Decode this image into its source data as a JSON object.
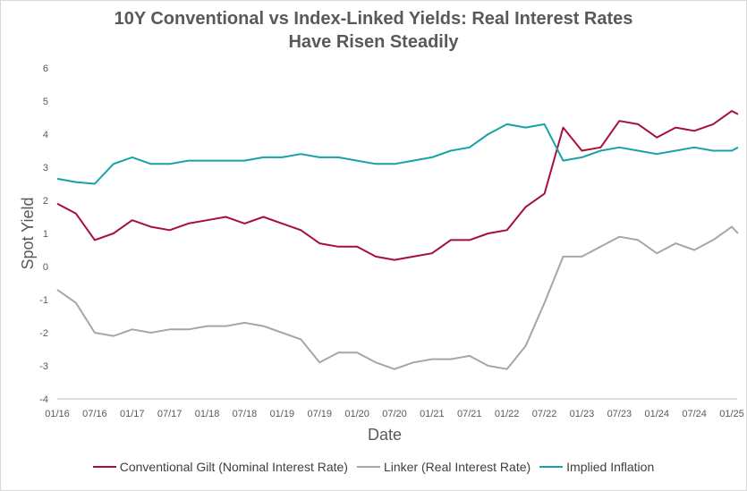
{
  "chart_data": {
    "type": "line",
    "title_line1": "10Y Conventional vs Index-Linked Yields: Real Interest Rates",
    "title_line2": "Have Risen Steadily",
    "xlabel": "Date",
    "ylabel": "Spot Yield",
    "ylim": [
      -4,
      6
    ],
    "yticks": [
      "6",
      "5",
      "4",
      "3",
      "2",
      "1",
      "0",
      "-1",
      "-2",
      "-3",
      "-4"
    ],
    "xticks": [
      "01/16",
      "07/16",
      "01/17",
      "07/17",
      "01/18",
      "07/18",
      "01/19",
      "07/19",
      "01/20",
      "07/20",
      "01/21",
      "07/21",
      "01/22",
      "07/22",
      "01/23",
      "07/23",
      "01/24",
      "07/24",
      "01/25"
    ],
    "x": [
      "01/16",
      "04/16",
      "07/16",
      "10/16",
      "01/17",
      "04/17",
      "07/17",
      "10/17",
      "01/18",
      "04/18",
      "07/18",
      "10/18",
      "01/19",
      "04/19",
      "07/19",
      "10/19",
      "01/20",
      "04/20",
      "07/20",
      "10/20",
      "01/21",
      "04/21",
      "07/21",
      "10/21",
      "01/22",
      "04/22",
      "07/22",
      "10/22",
      "01/23",
      "04/23",
      "07/23",
      "10/23",
      "01/24",
      "04/24",
      "07/24",
      "10/24",
      "01/25",
      "02/25"
    ],
    "series": [
      {
        "name": "Conventional Gilt (Nominal Interest Rate)",
        "color": "#a50f3a",
        "values": [
          1.9,
          1.6,
          0.8,
          1.0,
          1.4,
          1.2,
          1.1,
          1.3,
          1.4,
          1.5,
          1.3,
          1.5,
          1.3,
          1.1,
          0.7,
          0.6,
          0.6,
          0.3,
          0.2,
          0.3,
          0.4,
          0.8,
          0.8,
          1.0,
          1.1,
          1.8,
          2.2,
          4.2,
          3.5,
          3.6,
          4.4,
          4.3,
          3.9,
          4.2,
          4.1,
          4.3,
          4.7,
          4.6
        ]
      },
      {
        "name": "Linker (Real Interest Rate)",
        "color": "#a6a6a6",
        "values": [
          -0.7,
          -1.1,
          -2.0,
          -2.1,
          -1.9,
          -2.0,
          -1.9,
          -1.9,
          -1.8,
          -1.8,
          -1.7,
          -1.8,
          -2.0,
          -2.2,
          -2.9,
          -2.6,
          -2.6,
          -2.9,
          -3.1,
          -2.9,
          -2.8,
          -2.8,
          -2.7,
          -3.0,
          -3.1,
          -2.4,
          -1.1,
          0.3,
          0.3,
          0.6,
          0.9,
          0.8,
          0.4,
          0.7,
          0.5,
          0.8,
          1.2,
          1.0
        ]
      },
      {
        "name": "Implied Inflation",
        "color": "#17a2a5",
        "values": [
          2.65,
          2.55,
          2.5,
          3.1,
          3.3,
          3.1,
          3.1,
          3.2,
          3.2,
          3.2,
          3.2,
          3.3,
          3.3,
          3.4,
          3.3,
          3.3,
          3.2,
          3.1,
          3.1,
          3.2,
          3.3,
          3.5,
          3.6,
          4.0,
          4.3,
          4.2,
          4.3,
          3.2,
          3.3,
          3.5,
          3.6,
          3.5,
          3.4,
          3.5,
          3.6,
          3.5,
          3.5,
          3.6
        ]
      }
    ]
  }
}
